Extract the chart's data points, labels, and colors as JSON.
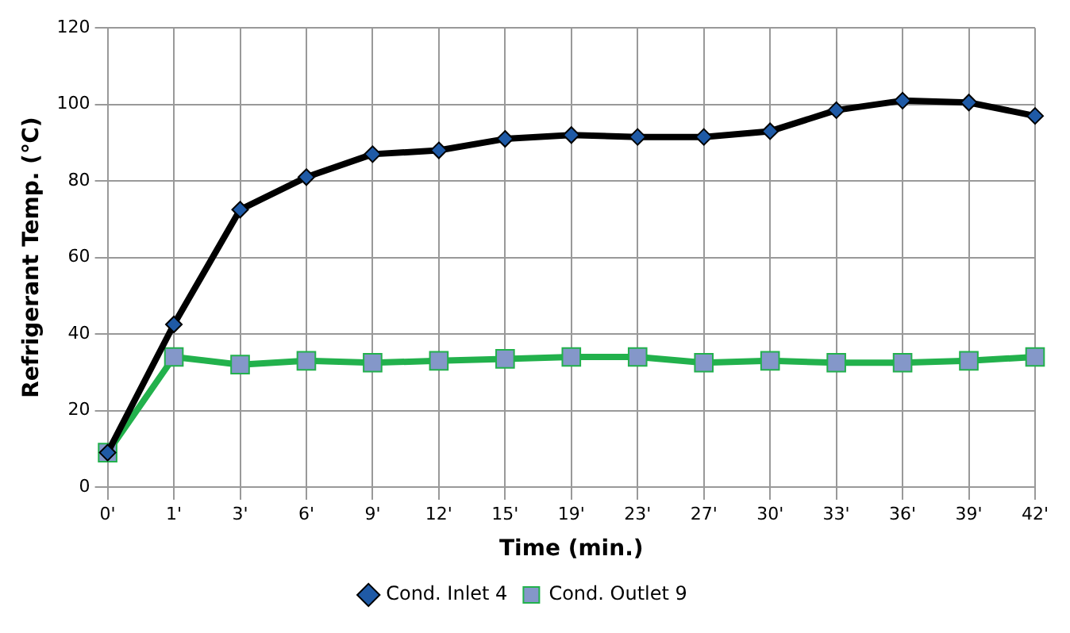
{
  "chart_data": {
    "type": "line",
    "xlabel": "Time (min.)",
    "ylabel": "Refrigerant Temp. (℃)",
    "categories": [
      "0'",
      "1'",
      "3'",
      "6'",
      "9'",
      "12'",
      "15'",
      "19'",
      "23'",
      "27'",
      "30'",
      "33'",
      "36'",
      "39'",
      "42'"
    ],
    "series": [
      {
        "name": "Cond. Inlet 4",
        "color": "#000000",
        "marker": "diamond",
        "values": [
          9,
          42.5,
          72.5,
          81,
          87,
          88,
          91,
          92,
          91.5,
          91.5,
          93,
          98.5,
          101,
          100.5,
          97
        ]
      },
      {
        "name": "Cond. Outlet 9",
        "color": "#22b14c",
        "marker": "square",
        "values": [
          9,
          34,
          32,
          33,
          32.5,
          33,
          33.5,
          34,
          34,
          32.5,
          33,
          32.5,
          32.5,
          33,
          34
        ]
      }
    ],
    "ylim": [
      0,
      120
    ],
    "yticks": [
      0,
      20,
      40,
      60,
      80,
      100,
      120
    ],
    "grid": true,
    "legend": "bottom"
  }
}
